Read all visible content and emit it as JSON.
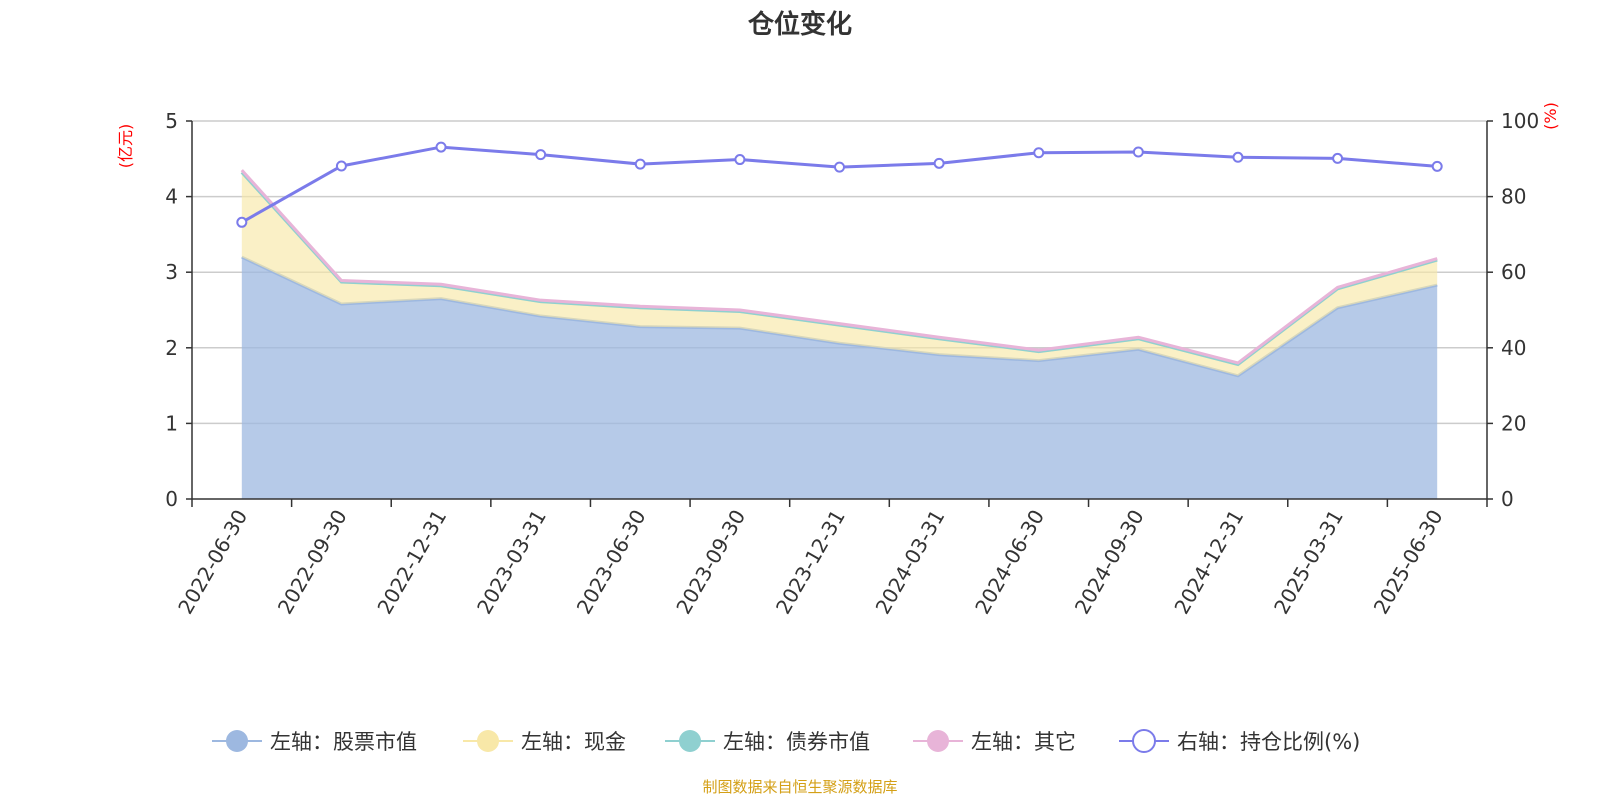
{
  "chart_data": {
    "type": "area",
    "title": "仓位变化",
    "x": [
      "2022-06-30",
      "2022-09-30",
      "2022-12-31",
      "2023-03-31",
      "2023-06-30",
      "2023-09-30",
      "2023-12-31",
      "2024-03-31",
      "2024-06-30",
      "2024-09-30",
      "2024-12-31",
      "2025-03-31",
      "2025-06-30"
    ],
    "left_axis": {
      "unit_label": "(亿元)",
      "ylim": [
        0,
        5
      ],
      "ticks": [
        "0",
        "1",
        "2",
        "3",
        "4",
        "5"
      ]
    },
    "right_axis": {
      "unit_label": "(%)",
      "ylim": [
        0,
        100
      ],
      "ticks": [
        "0",
        "20",
        "40",
        "60",
        "80",
        "100"
      ]
    },
    "series": [
      {
        "name": "左轴：股票市值",
        "axis": "left",
        "kind": "stacked-area",
        "color": "#9db8e0",
        "values": [
          3.2,
          2.58,
          2.65,
          2.42,
          2.28,
          2.26,
          2.06,
          1.91,
          1.83,
          1.98,
          1.63,
          2.53,
          2.83
        ]
      },
      {
        "name": "左轴：现金",
        "axis": "left",
        "kind": "stacked-area",
        "color": "#f8e8a8",
        "values": [
          1.12,
          0.29,
          0.17,
          0.19,
          0.25,
          0.22,
          0.24,
          0.21,
          0.12,
          0.14,
          0.15,
          0.25,
          0.33
        ]
      },
      {
        "name": "左轴：债券市值",
        "axis": "left",
        "kind": "stacked-area",
        "color": "#8fd0d0",
        "values": [
          0,
          0,
          0,
          0,
          0,
          0,
          0,
          0,
          0,
          0,
          0,
          0,
          0
        ]
      },
      {
        "name": "左轴：其它",
        "axis": "left",
        "kind": "stacked-area",
        "color": "#e8b4d8",
        "values": [
          0.03,
          0.02,
          0.02,
          0.02,
          0.02,
          0.02,
          0.02,
          0.02,
          0.02,
          0.02,
          0.02,
          0.02,
          0.02
        ]
      },
      {
        "name": "右轴：持仓比例(%)",
        "axis": "right",
        "kind": "line",
        "color": "#7b7bea",
        "values": [
          73.2,
          88.1,
          93.1,
          91.1,
          88.6,
          89.8,
          87.8,
          88.8,
          91.6,
          91.8,
          90.4,
          90.1,
          88.0
        ]
      }
    ],
    "grid": true,
    "legend_position": "bottom"
  },
  "footer": {
    "source": "制图数据来自恒生聚源数据库"
  }
}
